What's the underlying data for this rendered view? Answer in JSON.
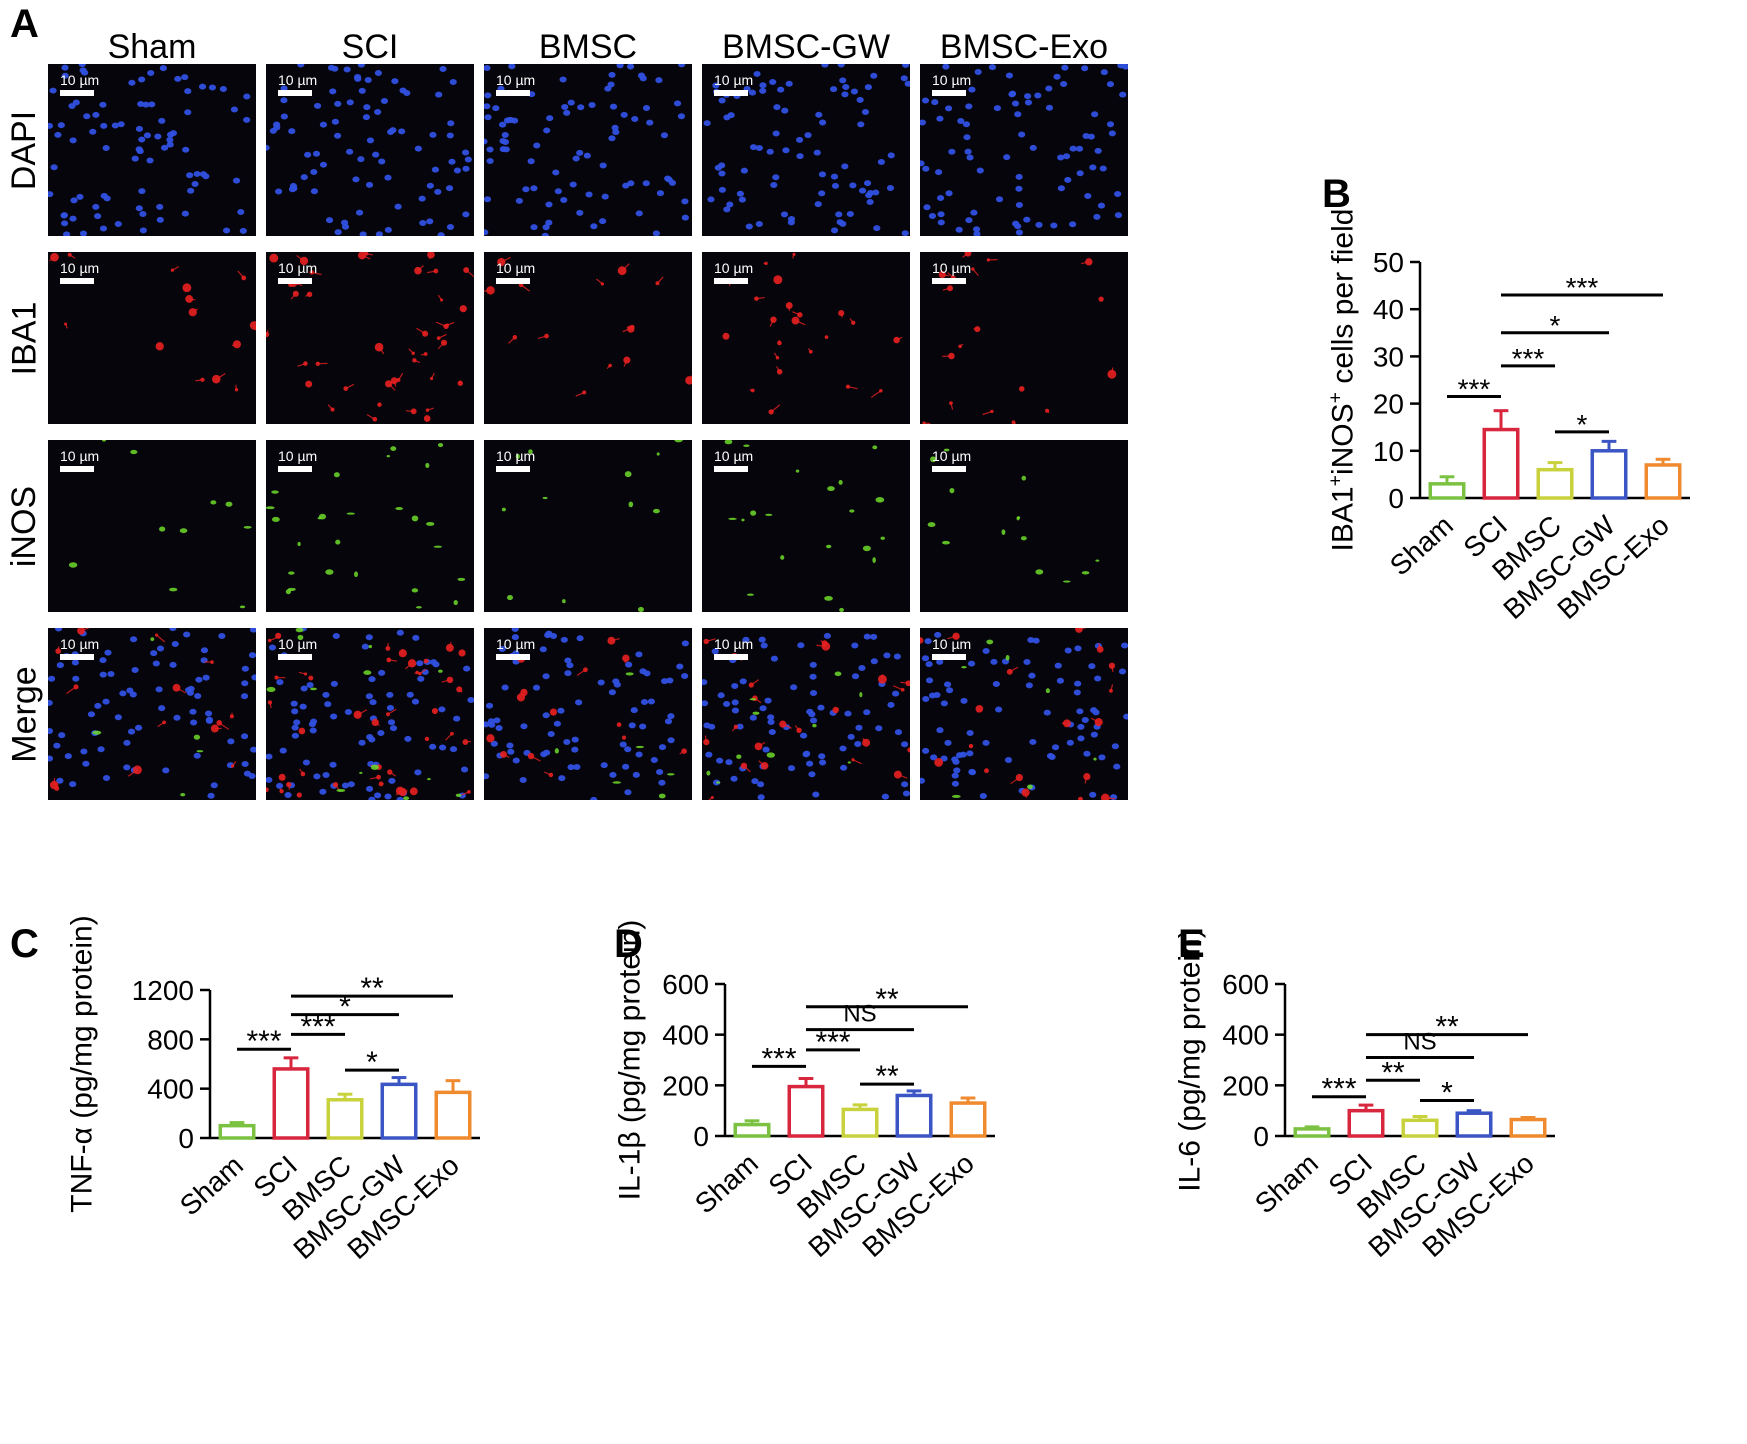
{
  "panel_letters": {
    "a": "A",
    "b": "B",
    "c": "C",
    "d": "D",
    "e": "E"
  },
  "micrograph_grid": {
    "columns": [
      "Sham",
      "SCI",
      "BMSC",
      "BMSC-GW",
      "BMSC-Exo"
    ],
    "rows": [
      "DAPI",
      "IBA1",
      "iNOS",
      "Merge"
    ],
    "scale_bar_label": "10 µm",
    "channel_colors": {
      "dapi": "#3050e0",
      "iba1": "#e82020",
      "inos": "#6fdc2a"
    }
  },
  "chart_data": [
    {
      "panel": "B",
      "type": "bar",
      "categories": [
        "Sham",
        "SCI",
        "BMSC",
        "BMSC-GW",
        "BMSC-Exo"
      ],
      "values": [
        3,
        14.5,
        6,
        10,
        7
      ],
      "errors": [
        1.5,
        4,
        1.5,
        2,
        1.2
      ],
      "colors": [
        "#7cc242",
        "#d7263d",
        "#c8d23c",
        "#3b55c4",
        "#ef8a2e"
      ],
      "ylabel_parts": {
        "pre": "IBA1",
        "sup1": "+",
        "mid": "iNOS",
        "sup2": "+",
        "post": " cells per field"
      },
      "ylim": [
        0,
        50
      ],
      "yticks": [
        0,
        10,
        20,
        30,
        40,
        50
      ],
      "significance": [
        {
          "from": 0,
          "to": 1,
          "label": "***",
          "y": 21.5
        },
        {
          "from": 1,
          "to": 2,
          "label": "***",
          "y": 28
        },
        {
          "from": 1,
          "to": 3,
          "label": "*",
          "y": 35
        },
        {
          "from": 1,
          "to": 4,
          "label": "***",
          "y": 43
        },
        {
          "from": 2,
          "to": 3,
          "label": "*",
          "y": 14
        }
      ]
    },
    {
      "panel": "C",
      "type": "bar",
      "categories": [
        "Sham",
        "SCI",
        "BMSC",
        "BMSC-GW",
        "BMSC-Exo"
      ],
      "values": [
        100,
        560,
        310,
        435,
        370
      ],
      "errors": [
        25,
        90,
        45,
        55,
        95
      ],
      "colors": [
        "#7cc242",
        "#d7263d",
        "#c8d23c",
        "#3b55c4",
        "#ef8a2e"
      ],
      "ylabel": "TNF-α (pg/mg protein)",
      "ylim": [
        0,
        1200
      ],
      "yticks": [
        0,
        400,
        800,
        1200
      ],
      "significance": [
        {
          "from": 0,
          "to": 1,
          "label": "***",
          "y": 720
        },
        {
          "from": 1,
          "to": 2,
          "label": "***",
          "y": 840
        },
        {
          "from": 1,
          "to": 3,
          "label": "*",
          "y": 1000
        },
        {
          "from": 1,
          "to": 4,
          "label": "**",
          "y": 1150
        },
        {
          "from": 2,
          "to": 3,
          "label": "*",
          "y": 550
        }
      ]
    },
    {
      "panel": "D",
      "type": "bar",
      "categories": [
        "Sham",
        "SCI",
        "BMSC",
        "BMSC-GW",
        "BMSC-Exo"
      ],
      "values": [
        45,
        195,
        105,
        160,
        130
      ],
      "errors": [
        15,
        32,
        18,
        18,
        20
      ],
      "colors": [
        "#7cc242",
        "#d7263d",
        "#c8d23c",
        "#3b55c4",
        "#ef8a2e"
      ],
      "ylabel": "IL-1β (pg/mg protein)",
      "ylim": [
        0,
        600
      ],
      "yticks": [
        0,
        200,
        400,
        600
      ],
      "significance": [
        {
          "from": 0,
          "to": 1,
          "label": "***",
          "y": 275
        },
        {
          "from": 1,
          "to": 2,
          "label": "***",
          "y": 340
        },
        {
          "from": 1,
          "to": 3,
          "label": "NS",
          "y": 420
        },
        {
          "from": 1,
          "to": 4,
          "label": "**",
          "y": 510
        },
        {
          "from": 2,
          "to": 3,
          "label": "**",
          "y": 205
        }
      ]
    },
    {
      "panel": "E",
      "type": "bar",
      "categories": [
        "Sham",
        "SCI",
        "BMSC",
        "BMSC-GW",
        "BMSC-Exo"
      ],
      "values": [
        28,
        100,
        62,
        90,
        65
      ],
      "errors": [
        8,
        22,
        15,
        10,
        8
      ],
      "colors": [
        "#7cc242",
        "#d7263d",
        "#c8d23c",
        "#3b55c4",
        "#ef8a2e"
      ],
      "ylabel": "IL-6 (pg/mg protein)",
      "ylim": [
        0,
        600
      ],
      "yticks": [
        0,
        200,
        400,
        600
      ],
      "significance": [
        {
          "from": 0,
          "to": 1,
          "label": "***",
          "y": 155
        },
        {
          "from": 1,
          "to": 2,
          "label": "**",
          "y": 220
        },
        {
          "from": 1,
          "to": 3,
          "label": "NS",
          "y": 310
        },
        {
          "from": 1,
          "to": 4,
          "label": "**",
          "y": 400
        },
        {
          "from": 2,
          "to": 3,
          "label": "*",
          "y": 140
        }
      ]
    }
  ]
}
